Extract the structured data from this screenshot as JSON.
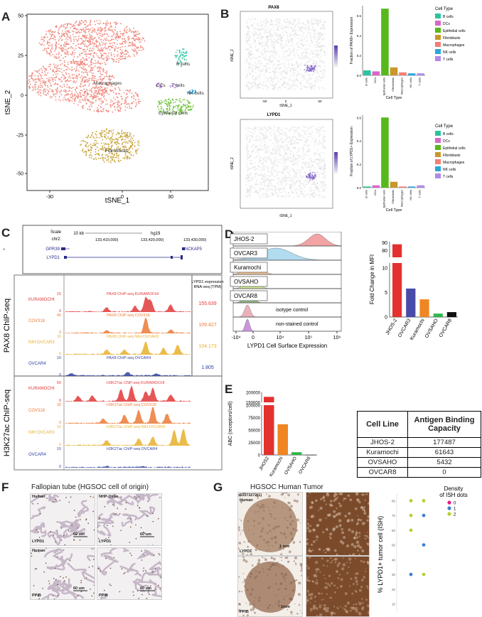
{
  "panelA": {
    "letter": "A",
    "xlabel": "tSNE_1",
    "ylabel": "tSNE_2",
    "xticks": [
      "-30",
      "0",
      "30"
    ],
    "yticks": [
      "50",
      "25",
      "0",
      "-25",
      "-50"
    ],
    "clusters": [
      {
        "name": "Macrophages",
        "color": "#f08a7f"
      },
      {
        "name": "B cells",
        "color": "#3cc9a8"
      },
      {
        "name": "DCs",
        "color": "#c07bd9"
      },
      {
        "name": "T cells",
        "color": "#b78de3"
      },
      {
        "name": "NK cells",
        "color": "#3ea6de"
      },
      {
        "name": "Epithelial cells",
        "color": "#6fc43a"
      },
      {
        "name": "Fibroblasts",
        "color": "#c9a43a"
      }
    ]
  },
  "panelB": {
    "letter": "B",
    "pax8_title": "PAX8",
    "lypd1_title": "LYPD1",
    "tsne_x": "tSNE_1",
    "tsne_y": "tSNE_2",
    "tsne_ticks": [
      "-50",
      "0",
      "50"
    ],
    "legend_title": "Cell Type",
    "cell_types": [
      {
        "name": "B cells",
        "color": "#2cc3a0"
      },
      {
        "name": "DCs",
        "color": "#d867c9"
      },
      {
        "name": "Epithelial cells",
        "color": "#56b81c"
      },
      {
        "name": "Fibroblasts",
        "color": "#c8962a"
      },
      {
        "name": "Macrophages",
        "color": "#f37e74"
      },
      {
        "name": "NK cells",
        "color": "#2aa6dc"
      },
      {
        "name": "T cells",
        "color": "#b08ae6"
      }
    ],
    "xlabel": "Cell Type"
  },
  "panelC": {
    "letter": "C",
    "scale_label": "Scale",
    "chrom": "chr2:",
    "scale_bar": "10 kb",
    "genome": "hg19",
    "coords": [
      "133,410,000|",
      "133,420,000|",
      "133,430,000|"
    ],
    "genes": [
      "GPR39",
      "LYPD1",
      "NCKAP5"
    ],
    "rna_header": "LYPD1 expression\nRNA-seq (TPM)",
    "pax8_group": "PAX8 ChIP-seq",
    "h3k_group": "H3K27ac ChIP-seq",
    "pax8_tracks": [
      {
        "cell": "KURAMOCHI",
        "title": "PAX8 ChIP-seq KURAMOCHI",
        "max": "15",
        "color": "#e0383a",
        "tpm": "155.639"
      },
      {
        "cell": "COV318",
        "title": "PAX8 ChIP-seq COV318",
        "max": "45",
        "color": "#ec7a36",
        "tpm": "109.427"
      },
      {
        "cell": "NIH:OVCAR3",
        "title": "PAX8 ChIP-seq NIH:OVCAR3",
        "max": "10",
        "color": "#e8b02c",
        "tpm": "104.173"
      },
      {
        "cell": "OVCAR4",
        "title": "PAX8 ChIP-seq OVCAR4",
        "max": "10",
        "color": "#2f3f9e",
        "tpm": "1.805"
      }
    ],
    "h3k_tracks": [
      {
        "cell": "KURAMOCHI",
        "title": "H3K27ac CNP-seq KURAMOCHI",
        "max": "50",
        "color": "#e0383a"
      },
      {
        "cell": "COV318",
        "title": "H3K27ac ChIP-seq COV318",
        "max": "30",
        "color": "#ec7a36"
      },
      {
        "cell": "NIH:OVCAR3",
        "title": "H3K27ac ChIP-seq NIH:OVCAR3",
        "max": "10",
        "color": "#e8b02c"
      },
      {
        "cell": "OVCAR4",
        "title": "H3K27ac ChIP-seq OVCAR4",
        "max": "10",
        "color": "#2f3f9e"
      }
    ],
    "zero": "0"
  },
  "panelD": {
    "letter": "D",
    "rows": [
      {
        "name": "JHOS-2",
        "color": "#f19a9a"
      },
      {
        "name": "OVCAR3",
        "color": "#a9d8ee"
      },
      {
        "name": "Kuramochi",
        "color": "#f7c38d"
      },
      {
        "name": "OVSAHO",
        "color": "#cfe88e"
      },
      {
        "name": "OVCAR8",
        "color": "#8fb47a"
      },
      {
        "name": "isotype control",
        "color": "#e8a9b4"
      },
      {
        "name": "non-stained control",
        "color": "#c68ad8"
      }
    ],
    "hist_xlabel": "LYPD1 Cell Surface Expression",
    "hist_ticks": [
      "-10⁴",
      "0",
      "10⁴",
      "10⁵",
      "10⁶"
    ],
    "bar_ylabel": "Fold Change in MFI",
    "bar_yticks_top": [
      "90",
      "80"
    ],
    "bar_yticks_bottom": [
      "10",
      "5",
      "0"
    ]
  },
  "panelE": {
    "letter": "E",
    "ylabel": "ABC (receptors/cell)",
    "yticks_top": [
      "200000",
      "150000"
    ],
    "yticks_bottom": [
      "100000",
      "75000",
      "50000",
      "25000",
      "0"
    ],
    "table_headers": [
      "Cell Line",
      "Antigen Binding Capacity"
    ],
    "table_rows": [
      [
        "JHOS-2",
        "177487"
      ],
      [
        "Kuramochi",
        "61643"
      ],
      [
        "OVSAHO",
        "5432"
      ],
      [
        "OVCAR8",
        "0"
      ]
    ]
  },
  "panelF": {
    "letter": "F",
    "title": "Fallopian tube (HGSOC cell of origin)",
    "tiles": [
      {
        "top": "Human",
        "bottom": "LYPD1",
        "scale": "60 um"
      },
      {
        "top": "NHP-Cyno",
        "bottom": "LYPD1",
        "scale": "60 um"
      },
      {
        "top": "Human",
        "bottom": "PPIB",
        "scale": "60 um"
      },
      {
        "top": "",
        "bottom": "PPIB",
        "scale": "60 um"
      }
    ]
  },
  "panelG": {
    "letter": "G",
    "title": "HGSOC Human Tumor",
    "sample_id": "03373272(1)",
    "sample_species": "Human",
    "probe_top": "LYPD1",
    "probe_bottom": "PPIB",
    "scale": "1 mm",
    "scale2": "1mm",
    "ylabel": "% LYPD1+ tumor cell (ISH)",
    "yticks": [
      "80",
      "70",
      "60",
      "50",
      "40",
      "30",
      "20",
      "10"
    ],
    "legend_title": "Density\nof ISH dots",
    "density_levels": [
      {
        "label": "0",
        "color": "#e8188a"
      },
      {
        "label": "1",
        "color": "#3f7fd0"
      },
      {
        "label": "2",
        "color": "#b2d235"
      }
    ]
  },
  "chart_data": [
    {
      "type": "bar",
      "panel": "B-top",
      "ylabel": "Fraction of PAX8+ Expression",
      "xlabel": "Cell Type",
      "categories": [
        "B cells",
        "DCs",
        "Epithelial cells",
        "Fibroblasts",
        "Macrophages",
        "NK cells",
        "T cells"
      ],
      "values": [
        0.05,
        0.04,
        0.67,
        0.08,
        0.03,
        0.02,
        0.02
      ],
      "ylim": [
        0,
        0.7
      ],
      "yticks": [
        "0.0",
        "0.2",
        "0.4",
        "0.6"
      ]
    },
    {
      "type": "bar",
      "panel": "B-bottom",
      "ylabel": "Fraction of LYPD1+ Expression",
      "xlabel": "Cell Type",
      "categories": [
        "B cells",
        "DCs",
        "Epithelial cells",
        "Fibroblasts",
        "Macrophages",
        "NK cells",
        "T cells"
      ],
      "values": [
        0.01,
        0.02,
        0.6,
        0.05,
        0.01,
        0.01,
        0.02
      ],
      "ylim": [
        0,
        0.62
      ],
      "yticks": [
        "0.0",
        "0.2",
        "0.4",
        "0.6"
      ]
    },
    {
      "type": "bar",
      "panel": "D",
      "ylabel": "Fold Change in MFI",
      "categories": [
        "JHOS-2",
        "OVCAR3",
        "Kuramochi",
        "OVSAHO",
        "OVCAR8"
      ],
      "values": [
        88,
        5.8,
        3.6,
        0.7,
        1.0
      ],
      "colors": [
        "#e2312f",
        "#4a4aa8",
        "#f08622",
        "#2db84a",
        "#111111"
      ],
      "axis_break": [
        11,
        78
      ]
    },
    {
      "type": "bar",
      "panel": "E",
      "ylabel": "ABC (receptors/cell)",
      "categories": [
        "JHOS2",
        "Kuramochi",
        "OVSAHO",
        "OVCAR8"
      ],
      "values": [
        177487,
        61643,
        5432,
        0
      ],
      "colors": [
        "#e2312f",
        "#f08622",
        "#2db84a",
        "#111111"
      ],
      "axis_break": [
        100000,
        140000
      ]
    },
    {
      "type": "scatter",
      "panel": "G",
      "ylabel": "% LYPD1+ tumor cell (ISH)",
      "ylim": [
        5,
        85
      ],
      "points": [
        {
          "x": 0,
          "y": 80,
          "density": 2
        },
        {
          "x": 1,
          "y": 80,
          "density": 2
        },
        {
          "x": 0,
          "y": 70,
          "density": 2
        },
        {
          "x": 1,
          "y": 70,
          "density": 1
        },
        {
          "x": 0,
          "y": 60,
          "density": 2
        },
        {
          "x": 1,
          "y": 50,
          "density": 1
        },
        {
          "x": 0,
          "y": 30,
          "density": 1
        },
        {
          "x": 1,
          "y": 30,
          "density": 2
        }
      ]
    }
  ]
}
